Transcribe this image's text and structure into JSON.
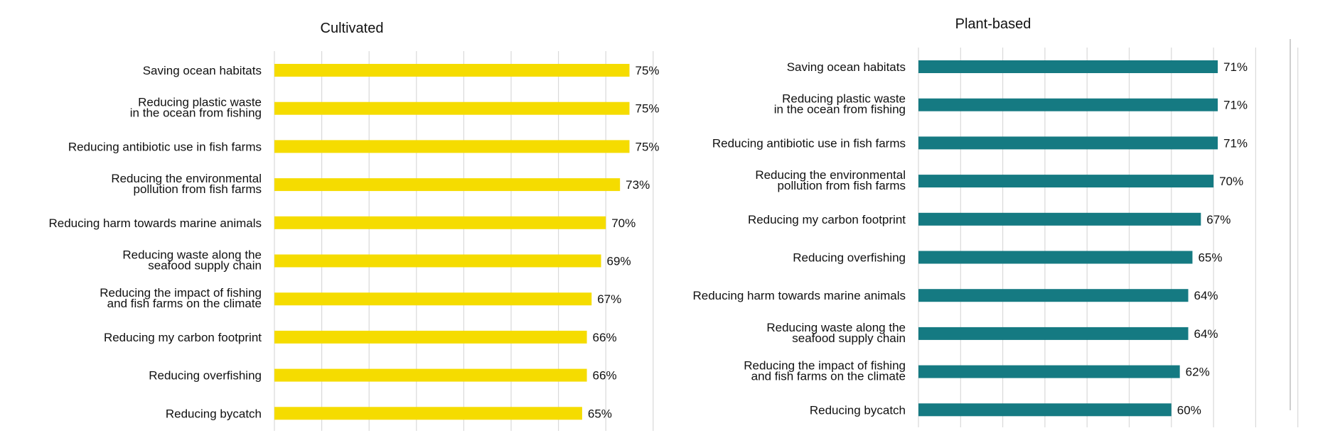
{
  "chart_data": [
    {
      "type": "bar",
      "orientation": "horizontal",
      "title": "Cultivated",
      "color": "#f5dc00",
      "value_suffix": "%",
      "xlim": [
        0,
        80
      ],
      "grid": true,
      "categories": [
        [
          "Saving ocean habitats"
        ],
        [
          "Reducing plastic waste",
          "in the ocean from fishing"
        ],
        [
          "Reducing antibiotic use in fish farms"
        ],
        [
          "Reducing the environmental",
          "pollution from fish farms"
        ],
        [
          "Reducing harm towards marine animals"
        ],
        [
          "Reducing waste along the",
          "seafood supply chain"
        ],
        [
          "Reducing the impact of fishing",
          "and fish farms on the climate"
        ],
        [
          "Reducing my carbon footprint"
        ],
        [
          "Reducing overfishing"
        ],
        [
          "Reducing bycatch"
        ]
      ],
      "values": [
        75,
        75,
        75,
        73,
        70,
        69,
        67,
        66,
        66,
        65
      ]
    },
    {
      "type": "bar",
      "orientation": "horizontal",
      "title": "Plant-based",
      "color": "#157a82",
      "value_suffix": "%",
      "xlim": [
        0,
        90
      ],
      "grid": true,
      "categories": [
        [
          "Saving ocean habitats"
        ],
        [
          "Reducing plastic waste",
          "in the ocean from fishing"
        ],
        [
          "Reducing antibiotic use in fish farms"
        ],
        [
          "Reducing the environmental",
          "pollution from fish farms"
        ],
        [
          "Reducing my carbon footprint"
        ],
        [
          "Reducing overfishing"
        ],
        [
          "Reducing harm towards marine animals"
        ],
        [
          "Reducing waste along the",
          "seafood supply chain"
        ],
        [
          "Reducing the impact of fishing",
          "and fish farms on the climate"
        ],
        [
          "Reducing bycatch"
        ]
      ],
      "values": [
        71,
        71,
        71,
        70,
        67,
        65,
        64,
        64,
        62,
        60
      ]
    }
  ]
}
